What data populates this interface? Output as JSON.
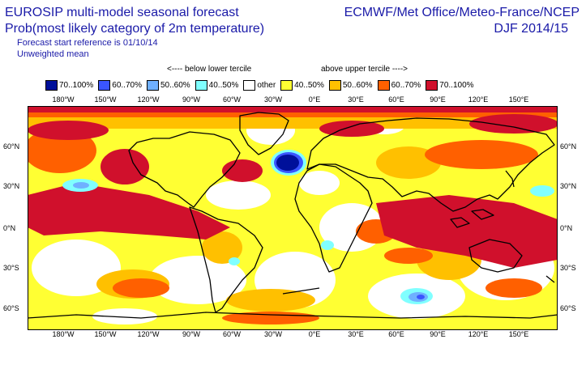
{
  "header": {
    "title_line1": "EUROSIP multi-model seasonal forecast",
    "title_line2": "Prob(most likely category of 2m temperature)",
    "subtitle_line1": "Forecast start reference is 01/10/14",
    "subtitle_line2": "Unweighted mean",
    "centres": "ECMWF/Met Office/Meteo-France/NCEP",
    "period": "DJF 2014/15"
  },
  "legend": {
    "below_label": "<---- below lower tercile",
    "above_label": "above upper tercile ---->",
    "items": [
      {
        "label": "70..100%",
        "color": "#00109a"
      },
      {
        "label": "60..70%",
        "color": "#3a55ff"
      },
      {
        "label": "50..60%",
        "color": "#6fb0ff"
      },
      {
        "label": "40..50%",
        "color": "#80ffff"
      },
      {
        "label": "other",
        "color": "#ffffff"
      },
      {
        "label": "40..50%",
        "color": "#ffff33"
      },
      {
        "label": "50..60%",
        "color": "#ffc000"
      },
      {
        "label": "60..70%",
        "color": "#ff6000"
      },
      {
        "label": "70..100%",
        "color": "#d0102c"
      }
    ]
  },
  "axes": {
    "lon_labels": [
      "180°W",
      "150°W",
      "120°W",
      "90°W",
      "60°W",
      "30°W",
      "0°E",
      "30°E",
      "60°E",
      "90°E",
      "120°E",
      "150°E"
    ],
    "lat_labels": [
      "60°N",
      "30°N",
      "0°N",
      "30°S",
      "60°S"
    ]
  }
}
